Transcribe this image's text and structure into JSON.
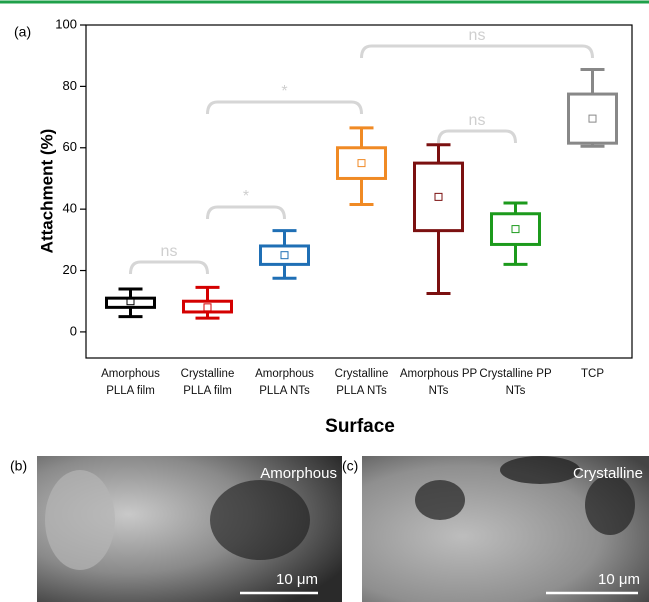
{
  "chart_data": {
    "type": "box",
    "panel_label": "(a)",
    "ylabel": "Attachment (%)",
    "xlabel": "Surface",
    "categories": [
      "Amorphous PLLA film",
      "Crystalline PLLA film",
      "Amorphous PLLA NTs",
      "Crystalline PLLA NTs",
      "Amorphous PP NTs",
      "Crystalline PP NTs",
      "TCP"
    ],
    "colors": [
      "#000000",
      "#d40000",
      "#1f6fb5",
      "#f08a24",
      "#7b1010",
      "#1c9a1c",
      "#888888"
    ],
    "boxes": [
      {
        "min": 5,
        "q1": 8,
        "mean": 10,
        "q3": 11,
        "max": 14
      },
      {
        "min": 4.5,
        "q1": 6.5,
        "mean": 8,
        "q3": 10,
        "max": 14.5
      },
      {
        "min": 17.5,
        "q1": 22,
        "mean": 25,
        "q3": 28,
        "max": 33
      },
      {
        "min": 41.5,
        "q1": 50,
        "mean": 55,
        "q3": 60,
        "max": 66.5
      },
      {
        "min": 12.5,
        "q1": 33,
        "mean": 44,
        "q3": 55,
        "max": 61
      },
      {
        "min": 22,
        "q1": 28.5,
        "mean": 33.5,
        "q3": 38.5,
        "max": 42
      },
      {
        "min": 60.5,
        "q1": 61.5,
        "mean": 69.5,
        "q3": 77.5,
        "max": 85.5
      }
    ],
    "ylim": [
      -8.5,
      100
    ],
    "yticks": [
      0,
      20,
      40,
      60,
      80,
      100
    ],
    "significance": [
      "ns",
      "*",
      "*",
      "ns",
      "ns"
    ]
  },
  "images": [
    {
      "label": "(b)",
      "caption": "Amorphous",
      "scale": "10 μm"
    },
    {
      "label": "(c)",
      "caption": "Crystalline",
      "scale": "10 μm"
    }
  ]
}
